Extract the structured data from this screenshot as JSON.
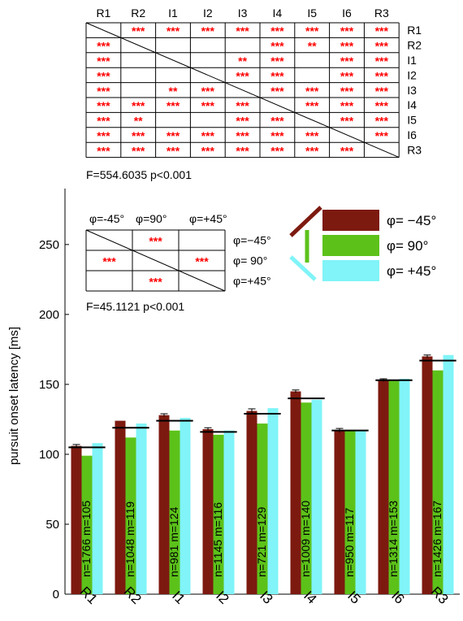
{
  "chart_data": [
    {
      "type": "table",
      "columns": [
        "R1",
        "R2",
        "I1",
        "I2",
        "I3",
        "I4",
        "I5",
        "I6",
        "R3"
      ],
      "rows": [
        "R1",
        "R2",
        "I1",
        "I2",
        "I3",
        "I4",
        "I5",
        "I6",
        "R3"
      ],
      "cells": [
        [
          "",
          "***",
          "***",
          "***",
          "***",
          "***",
          "***",
          "***",
          "***"
        ],
        [
          "***",
          "",
          "",
          "",
          "",
          "***",
          "**",
          "***",
          "***"
        ],
        [
          "***",
          "",
          "",
          "",
          "**",
          "***",
          "",
          "***",
          "***"
        ],
        [
          "***",
          "",
          "",
          "",
          "***",
          "***",
          "",
          "***",
          "***"
        ],
        [
          "***",
          "",
          "**",
          "***",
          "",
          "***",
          "***",
          "***",
          "***"
        ],
        [
          "***",
          "***",
          "***",
          "***",
          "***",
          "",
          "***",
          "***",
          "***"
        ],
        [
          "***",
          "**",
          "",
          "",
          "***",
          "***",
          "",
          "***",
          "***"
        ],
        [
          "***",
          "***",
          "***",
          "***",
          "***",
          "***",
          "***",
          "",
          "***"
        ],
        [
          "***",
          "***",
          "***",
          "***",
          "***",
          "***",
          "***",
          "***",
          ""
        ]
      ],
      "stats": "F=554.6035    p<0.001"
    },
    {
      "type": "table",
      "columns": [
        "φ=-45°",
        "φ=90°",
        "φ=+45°"
      ],
      "rows": [
        "φ=−45°",
        "φ= 90°",
        "φ=+45°"
      ],
      "cells": [
        [
          "",
          "***",
          ""
        ],
        [
          "***",
          "",
          "***"
        ],
        [
          "",
          "***",
          ""
        ]
      ],
      "stats": "F=45.1121     p<0.001"
    },
    {
      "type": "bar",
      "ylabel": "pursuit onset latency [ms]",
      "xlabel": "",
      "ylim": [
        0,
        290
      ],
      "yticks": [
        0,
        50,
        100,
        150,
        200,
        250
      ],
      "categories": [
        "R1",
        "R2",
        "I1",
        "I2",
        "I3",
        "I4",
        "I5",
        "I6",
        "R3"
      ],
      "series": [
        {
          "name": "φ=  −45°",
          "color": "#7d1a10",
          "values": [
            106,
            124,
            128,
            118,
            131,
            145,
            117,
            153,
            170
          ],
          "errors": [
            1,
            0,
            1,
            1,
            1.5,
            1,
            1.5,
            1,
            1
          ]
        },
        {
          "name": "φ=  90°",
          "color": "#5cc21a",
          "values": [
            99,
            112,
            117,
            114,
            122,
            137,
            117,
            153,
            160
          ],
          "errors": [
            0,
            0,
            0,
            0,
            0,
            0,
            0,
            0,
            0
          ]
        },
        {
          "name": "φ= +45°",
          "color": "#80f4f8",
          "values": [
            108,
            122,
            126,
            117,
            133,
            139,
            117,
            154,
            171
          ],
          "errors": [
            0,
            0,
            0,
            0,
            0,
            0,
            0,
            0,
            0
          ]
        }
      ],
      "means": [
        105,
        119,
        124,
        116,
        129,
        140,
        117,
        153,
        167
      ],
      "bar_labels": [
        "n=1766  m=105",
        "n=1048  m=119",
        "n=981     m=124",
        "n=1145  m=116",
        "n=721     m=129",
        "n=1009  m=140",
        "n=950     m=117",
        "n=1314  m=153",
        "n=1426  m=167"
      ]
    }
  ]
}
